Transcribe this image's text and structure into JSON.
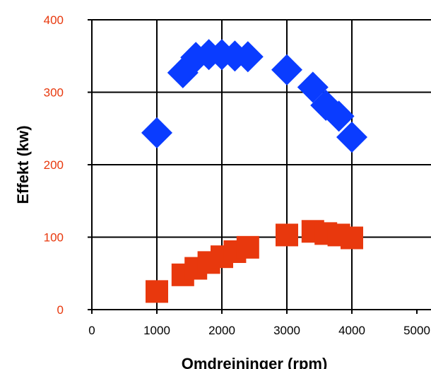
{
  "chart_data": {
    "type": "scatter",
    "xlabel": "Omdreininger (rpm)",
    "ylabel": "Effekt (kw)",
    "xlim": [
      0,
      5000
    ],
    "ylim": [
      0,
      400
    ],
    "x_ticks": [
      "0",
      "1000",
      "2000",
      "3000",
      "4000",
      "5000"
    ],
    "y_ticks": [
      "0",
      "100",
      "200",
      "300",
      "400"
    ],
    "grid": true,
    "legend": "none",
    "y_tick_color": "#e8380d",
    "x_tick_color": "#000000",
    "series": [
      {
        "marker": "diamond",
        "color": "#0a3cff",
        "x": [
          1000,
          1400,
          1600,
          1800,
          2000,
          2200,
          2400,
          3000,
          3400,
          3600,
          3800,
          4000
        ],
        "y": [
          244,
          327,
          348,
          352,
          352,
          350,
          349,
          331,
          307,
          282,
          267,
          238
        ]
      },
      {
        "marker": "square",
        "color": "#e8380d",
        "x": [
          1000,
          1400,
          1600,
          1800,
          2000,
          2200,
          2400,
          3000,
          3400,
          3600,
          3800,
          4000
        ],
        "y": [
          25,
          48,
          57,
          65,
          73,
          80,
          86,
          103,
          108,
          105,
          103,
          99
        ]
      }
    ]
  }
}
